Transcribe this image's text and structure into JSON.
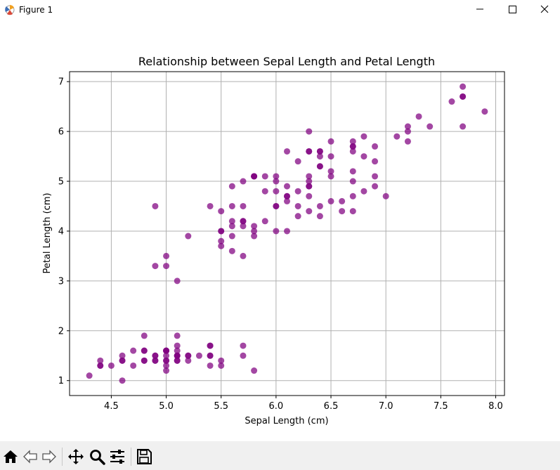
{
  "window": {
    "title": "Figure 1"
  },
  "toolbar": {
    "buttons": [
      "home-icon",
      "back-icon",
      "forward-icon",
      "pan-icon",
      "zoom-icon",
      "configure-subplots-icon",
      "save-icon"
    ]
  },
  "colors": {
    "points": "#800080",
    "grid": "#b0b0b0"
  },
  "chart_data": {
    "type": "scatter",
    "title": "Relationship between Sepal Length and Petal Length",
    "xlabel": "Sepal Length (cm)",
    "ylabel": "Petal Length (cm)",
    "xlim": [
      4.12,
      8.08
    ],
    "ylim": [
      0.7,
      7.2
    ],
    "xticks": [
      "4.5",
      "5.0",
      "5.5",
      "6.0",
      "6.5",
      "7.0",
      "7.5",
      "8.0"
    ],
    "yticks": [
      "1",
      "2",
      "3",
      "4",
      "5",
      "6",
      "7"
    ],
    "grid": true,
    "point_color": "#800080",
    "points": [
      [
        5.1,
        1.4
      ],
      [
        4.9,
        1.4
      ],
      [
        4.7,
        1.3
      ],
      [
        4.6,
        1.5
      ],
      [
        5.0,
        1.4
      ],
      [
        5.4,
        1.7
      ],
      [
        4.6,
        1.4
      ],
      [
        5.0,
        1.5
      ],
      [
        4.4,
        1.4
      ],
      [
        4.9,
        1.5
      ],
      [
        5.4,
        1.5
      ],
      [
        4.8,
        1.6
      ],
      [
        4.8,
        1.4
      ],
      [
        4.3,
        1.1
      ],
      [
        5.8,
        1.2
      ],
      [
        5.7,
        1.5
      ],
      [
        5.4,
        1.3
      ],
      [
        5.1,
        1.4
      ],
      [
        5.7,
        1.7
      ],
      [
        5.1,
        1.5
      ],
      [
        5.4,
        1.7
      ],
      [
        5.1,
        1.5
      ],
      [
        4.6,
        1.0
      ],
      [
        5.1,
        1.7
      ],
      [
        4.8,
        1.9
      ],
      [
        5.0,
        1.6
      ],
      [
        5.0,
        1.6
      ],
      [
        5.2,
        1.5
      ],
      [
        5.2,
        1.4
      ],
      [
        4.7,
        1.6
      ],
      [
        4.8,
        1.6
      ],
      [
        5.4,
        1.5
      ],
      [
        5.2,
        1.5
      ],
      [
        5.5,
        1.4
      ],
      [
        4.9,
        1.5
      ],
      [
        5.0,
        1.2
      ],
      [
        5.5,
        1.3
      ],
      [
        4.9,
        1.4
      ],
      [
        4.4,
        1.3
      ],
      [
        5.1,
        1.5
      ],
      [
        5.0,
        1.3
      ],
      [
        4.5,
        1.3
      ],
      [
        4.4,
        1.3
      ],
      [
        5.0,
        1.6
      ],
      [
        5.1,
        1.9
      ],
      [
        4.8,
        1.4
      ],
      [
        5.1,
        1.6
      ],
      [
        4.6,
        1.4
      ],
      [
        5.3,
        1.5
      ],
      [
        5.0,
        1.4
      ],
      [
        7.0,
        4.7
      ],
      [
        6.4,
        4.5
      ],
      [
        6.9,
        4.9
      ],
      [
        5.5,
        4.0
      ],
      [
        6.5,
        4.6
      ],
      [
        5.7,
        4.5
      ],
      [
        6.3,
        4.7
      ],
      [
        4.9,
        3.3
      ],
      [
        6.6,
        4.6
      ],
      [
        5.2,
        3.9
      ],
      [
        5.0,
        3.5
      ],
      [
        5.9,
        4.2
      ],
      [
        6.0,
        4.0
      ],
      [
        6.1,
        4.7
      ],
      [
        5.6,
        3.6
      ],
      [
        6.7,
        4.4
      ],
      [
        5.6,
        4.5
      ],
      [
        5.8,
        4.1
      ],
      [
        6.2,
        4.5
      ],
      [
        5.6,
        3.9
      ],
      [
        5.9,
        4.8
      ],
      [
        6.1,
        4.0
      ],
      [
        6.3,
        4.9
      ],
      [
        6.1,
        4.7
      ],
      [
        6.4,
        4.3
      ],
      [
        6.6,
        4.4
      ],
      [
        6.8,
        4.8
      ],
      [
        6.7,
        5.0
      ],
      [
        6.0,
        4.5
      ],
      [
        5.7,
        3.5
      ],
      [
        5.5,
        3.8
      ],
      [
        5.5,
        3.7
      ],
      [
        5.8,
        3.9
      ],
      [
        6.0,
        5.1
      ],
      [
        5.4,
        4.5
      ],
      [
        6.0,
        4.5
      ],
      [
        6.7,
        4.7
      ],
      [
        6.3,
        4.4
      ],
      [
        5.6,
        4.1
      ],
      [
        5.5,
        4.0
      ],
      [
        5.5,
        4.4
      ],
      [
        6.1,
        4.6
      ],
      [
        5.8,
        4.0
      ],
      [
        5.0,
        3.3
      ],
      [
        5.6,
        4.2
      ],
      [
        5.7,
        4.2
      ],
      [
        5.7,
        4.2
      ],
      [
        6.2,
        4.3
      ],
      [
        5.1,
        3.0
      ],
      [
        5.7,
        4.1
      ],
      [
        6.3,
        6.0
      ],
      [
        5.8,
        5.1
      ],
      [
        7.1,
        5.9
      ],
      [
        6.3,
        5.6
      ],
      [
        6.5,
        5.8
      ],
      [
        7.6,
        6.6
      ],
      [
        4.9,
        4.5
      ],
      [
        7.3,
        6.3
      ],
      [
        6.7,
        5.8
      ],
      [
        7.2,
        6.1
      ],
      [
        6.5,
        5.1
      ],
      [
        6.4,
        5.3
      ],
      [
        6.8,
        5.5
      ],
      [
        5.7,
        5.0
      ],
      [
        5.8,
        5.1
      ],
      [
        6.4,
        5.3
      ],
      [
        6.5,
        5.5
      ],
      [
        7.7,
        6.7
      ],
      [
        7.7,
        6.9
      ],
      [
        6.0,
        5.0
      ],
      [
        6.9,
        5.7
      ],
      [
        5.6,
        4.9
      ],
      [
        7.7,
        6.7
      ],
      [
        6.3,
        4.9
      ],
      [
        6.7,
        5.7
      ],
      [
        7.2,
        6.0
      ],
      [
        6.2,
        4.8
      ],
      [
        6.1,
        4.9
      ],
      [
        6.4,
        5.6
      ],
      [
        7.2,
        5.8
      ],
      [
        7.4,
        6.1
      ],
      [
        7.9,
        6.4
      ],
      [
        6.4,
        5.6
      ],
      [
        6.3,
        5.1
      ],
      [
        6.1,
        5.6
      ],
      [
        7.7,
        6.1
      ],
      [
        6.3,
        5.6
      ],
      [
        6.4,
        5.5
      ],
      [
        6.0,
        4.8
      ],
      [
        6.9,
        5.4
      ],
      [
        6.7,
        5.6
      ],
      [
        6.9,
        5.1
      ],
      [
        5.8,
        5.1
      ],
      [
        6.8,
        5.9
      ],
      [
        6.7,
        5.7
      ],
      [
        6.7,
        5.2
      ],
      [
        6.3,
        5.0
      ],
      [
        6.5,
        5.2
      ],
      [
        6.2,
        5.4
      ],
      [
        5.9,
        5.1
      ]
    ]
  }
}
